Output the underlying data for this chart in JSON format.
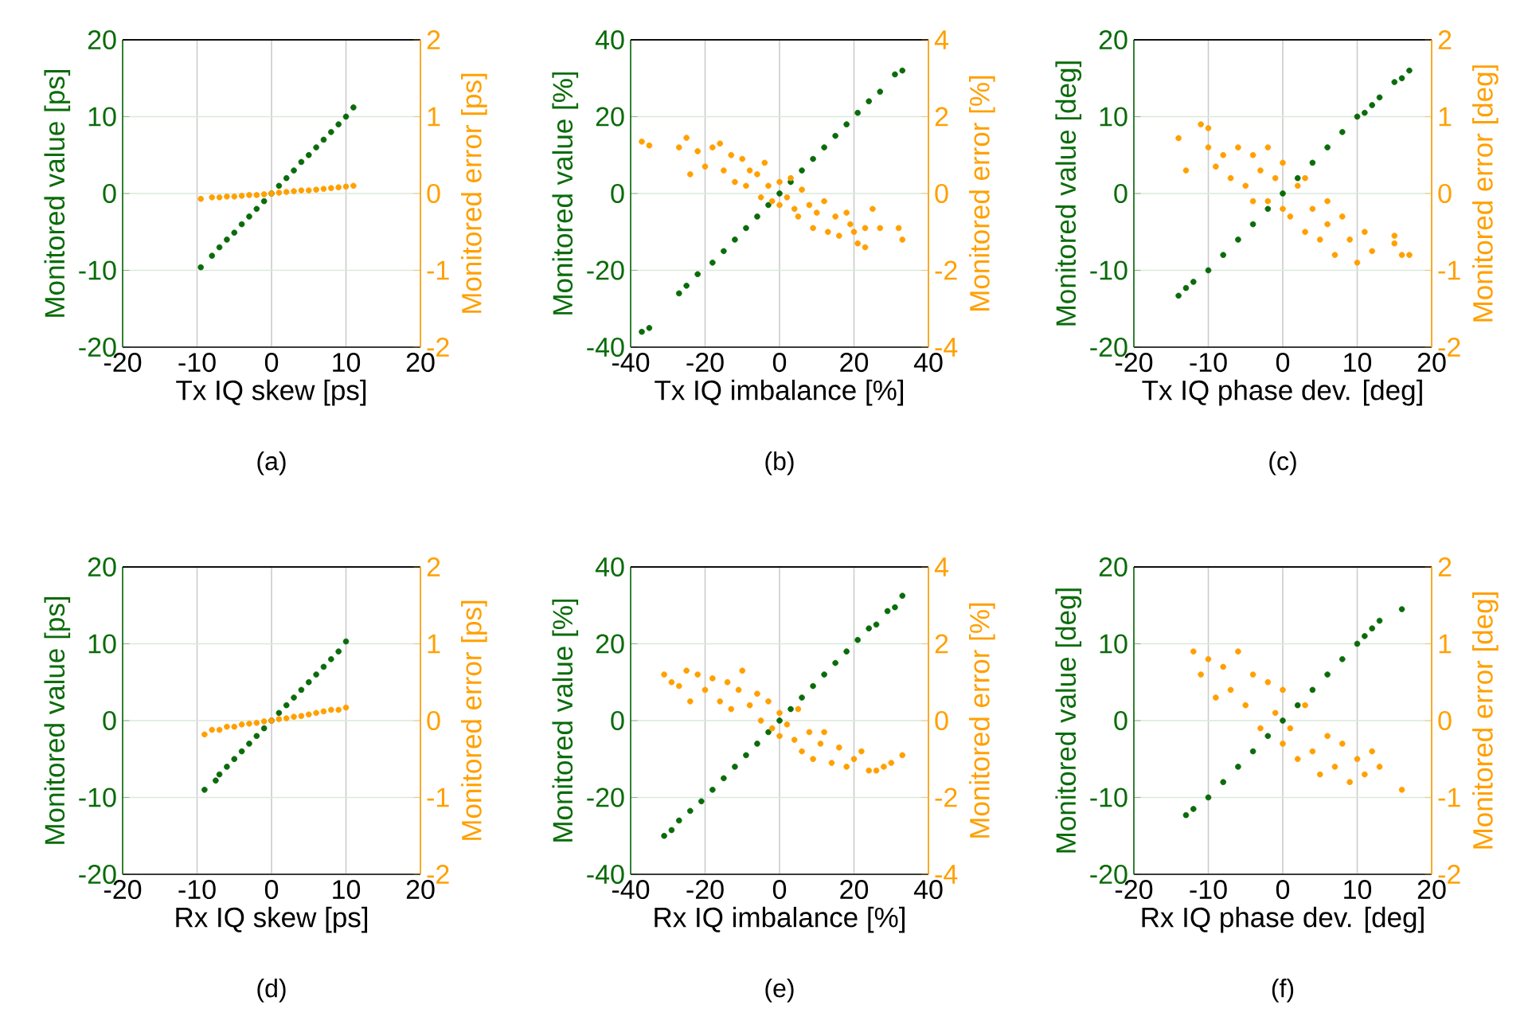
{
  "chart_data": [
    {
      "type": "scatter",
      "xlabel": "Tx IQ skew [ps]",
      "ylabel": "Monitored value [ps]",
      "y2label": "Monitored error [ps]",
      "annotations": [
        "(a)"
      ],
      "xlim": [
        -20,
        20
      ],
      "xticks": [
        -20,
        -10,
        0,
        10,
        20
      ],
      "ylim": [
        -20,
        20
      ],
      "yticks": [
        -20,
        -10,
        0,
        10,
        20
      ],
      "y2lim": [
        -2,
        2
      ],
      "y2ticks": [
        -2,
        -1,
        0,
        1,
        2
      ],
      "grid": true,
      "marker": "circle",
      "series": [
        {
          "color": "#0a6b0a",
          "x": [
            -9.5,
            -8,
            -7,
            -6,
            -5,
            -4,
            -3,
            -2,
            -1,
            0,
            1,
            2,
            3,
            4,
            5,
            6,
            7,
            8,
            9,
            10,
            11
          ],
          "values": [
            -9.6,
            -8.1,
            -7,
            -6,
            -5.1,
            -4,
            -3,
            -2,
            -1,
            0,
            1,
            2,
            3,
            4.1,
            5,
            6,
            7,
            8,
            9,
            10,
            11.2
          ]
        },
        {
          "color": "#ffa000",
          "axis": "y2",
          "x": [
            -9.5,
            -8,
            -7,
            -6,
            -5,
            -4,
            -3,
            -2,
            -1,
            0,
            1,
            2,
            3,
            4,
            5,
            6,
            7,
            8,
            9,
            10,
            11
          ],
          "values": [
            -0.07,
            -0.05,
            -0.05,
            -0.04,
            -0.04,
            -0.03,
            -0.02,
            -0.02,
            -0.01,
            0,
            0.01,
            0.02,
            0.03,
            0.04,
            0.04,
            0.05,
            0.06,
            0.07,
            0.08,
            0.09,
            0.1
          ]
        }
      ]
    },
    {
      "type": "scatter",
      "xlabel": "Tx IQ imbalance [%]",
      "ylabel": "Monitored value [%]",
      "y2label": "Monitored error [%]",
      "annotations": [
        "(b)"
      ],
      "xlim": [
        -40,
        40
      ],
      "xticks": [
        -40,
        -20,
        0,
        20,
        40
      ],
      "ylim": [
        -40,
        40
      ],
      "yticks": [
        -40,
        -20,
        0,
        20,
        40
      ],
      "y2lim": [
        -4,
        4
      ],
      "y2ticks": [
        -4,
        -2,
        0,
        2,
        4
      ],
      "grid": true,
      "marker": "circle",
      "series": [
        {
          "color": "#0a6b0a",
          "x": [
            -37,
            -35,
            -27,
            -25,
            -22,
            -18,
            -15,
            -12,
            -9,
            -6,
            -3,
            0,
            3,
            6,
            9,
            12,
            15,
            18,
            21,
            24,
            27,
            31,
            33
          ],
          "values": [
            -36,
            -35,
            -26,
            -24,
            -21,
            -18,
            -15,
            -12,
            -9,
            -6,
            -3,
            0,
            3,
            6,
            9,
            12,
            15,
            18,
            21,
            24,
            26.5,
            31,
            32
          ]
        },
        {
          "color": "#ffa000",
          "axis": "y2",
          "x": [
            -37,
            -35,
            -27,
            -25,
            -24,
            -22,
            -20,
            -18,
            -16,
            -15,
            -13,
            -12,
            -10,
            -9,
            -8,
            -6,
            -5,
            -4,
            -3,
            -2,
            0,
            0,
            2,
            3,
            4,
            5,
            6,
            8,
            9,
            10,
            12,
            13,
            15,
            16,
            18,
            19,
            20,
            21,
            23,
            23,
            25,
            27,
            32,
            33
          ],
          "values": [
            1.35,
            1.25,
            1.2,
            1.45,
            0.5,
            1.1,
            0.7,
            1.2,
            1.3,
            0.6,
            1.0,
            0.3,
            0.9,
            0.2,
            0.6,
            0.5,
            -0.1,
            0.8,
            0.2,
            -0.2,
            0.3,
            -0.3,
            -0.1,
            0.4,
            -0.4,
            -0.6,
            0.1,
            -0.3,
            -0.9,
            -0.5,
            -0.2,
            -1.0,
            -0.6,
            -1.1,
            -0.5,
            -0.8,
            -1.0,
            -1.3,
            -1.4,
            -0.9,
            -0.4,
            -0.9,
            -0.9,
            -1.2
          ]
        }
      ]
    },
    {
      "type": "scatter",
      "xlabel": "Tx IQ phase dev. [deg]",
      "ylabel": "Monitored value [deg]",
      "y2label": "Monitored error [deg]",
      "annotations": [
        "(c)"
      ],
      "xlim": [
        -20,
        20
      ],
      "xticks": [
        -20,
        -10,
        0,
        10,
        20
      ],
      "ylim": [
        -20,
        20
      ],
      "yticks": [
        -20,
        -10,
        0,
        10,
        20
      ],
      "y2lim": [
        -2,
        2
      ],
      "y2ticks": [
        -2,
        -1,
        0,
        1,
        2
      ],
      "grid": true,
      "marker": "circle",
      "series": [
        {
          "color": "#0a6b0a",
          "x": [
            -14,
            -13,
            -12,
            -10,
            -8,
            -6,
            -4,
            -2,
            0,
            2,
            4,
            6,
            8,
            10,
            11,
            12,
            13,
            15,
            16,
            17
          ],
          "values": [
            -13.3,
            -12.3,
            -11.5,
            -10,
            -8,
            -6,
            -4,
            -2,
            0,
            2,
            4,
            6,
            8,
            10,
            10.5,
            11.5,
            12.5,
            14.5,
            15,
            16
          ]
        },
        {
          "color": "#ffa000",
          "axis": "y2",
          "x": [
            -14,
            -13,
            -11,
            -10,
            -10,
            -9,
            -8,
            -7,
            -6,
            -5,
            -4,
            -4,
            -3,
            -2,
            -2,
            -1,
            0,
            0,
            1,
            2,
            3,
            3,
            4,
            5,
            6,
            6,
            7,
            8,
            9,
            10,
            11,
            12,
            15,
            15,
            16,
            17
          ],
          "values": [
            0.72,
            0.3,
            0.9,
            0.6,
            0.85,
            0.35,
            0.5,
            0.2,
            0.6,
            0.1,
            0.5,
            -0.1,
            0.3,
            0.6,
            -0.1,
            0.2,
            -0.2,
            0.4,
            -0.3,
            0.1,
            -0.5,
            0.2,
            -0.2,
            -0.6,
            -0.1,
            -0.4,
            -0.8,
            -0.3,
            -0.6,
            -0.9,
            -0.5,
            -0.75,
            -0.55,
            -0.65,
            -0.8,
            -0.8
          ]
        }
      ]
    },
    {
      "type": "scatter",
      "xlabel": "Rx IQ skew [ps]",
      "ylabel": "Monitored value [ps]",
      "y2label": "Monitored error [ps]",
      "annotations": [
        "(d)"
      ],
      "xlim": [
        -20,
        20
      ],
      "xticks": [
        -20,
        -10,
        0,
        10,
        20
      ],
      "ylim": [
        -20,
        20
      ],
      "yticks": [
        -20,
        -10,
        0,
        10,
        20
      ],
      "y2lim": [
        -2,
        2
      ],
      "y2ticks": [
        -2,
        -1,
        0,
        1,
        2
      ],
      "grid": true,
      "marker": "circle",
      "series": [
        {
          "color": "#0a6b0a",
          "x": [
            -9,
            -7.5,
            -7,
            -6,
            -5,
            -4,
            -3,
            -2,
            -1,
            0,
            1,
            2,
            3,
            4,
            5,
            6,
            7,
            8,
            9,
            10
          ],
          "values": [
            -9,
            -7.8,
            -7,
            -6,
            -5,
            -4,
            -3,
            -2,
            -1,
            0,
            1,
            2,
            3,
            4,
            5,
            6,
            7,
            8,
            9,
            10.3
          ]
        },
        {
          "color": "#ffa000",
          "axis": "y2",
          "x": [
            -9,
            -8,
            -7,
            -6,
            -5,
            -4,
            -3,
            -2,
            -1,
            0,
            1,
            2,
            3,
            4,
            5,
            6,
            7,
            8,
            9,
            10
          ],
          "values": [
            -0.18,
            -0.12,
            -0.12,
            -0.08,
            -0.08,
            -0.05,
            -0.04,
            -0.03,
            -0.01,
            0,
            0.02,
            0.03,
            0.05,
            0.06,
            0.08,
            0.1,
            0.12,
            0.14,
            0.14,
            0.17
          ]
        }
      ]
    },
    {
      "type": "scatter",
      "xlabel": "Rx IQ imbalance [%]",
      "ylabel": "Monitored value [%]",
      "y2label": "Monitored error [%]",
      "annotations": [
        "(e)"
      ],
      "xlim": [
        -40,
        40
      ],
      "xticks": [
        -40,
        -20,
        0,
        20,
        40
      ],
      "ylim": [
        -40,
        40
      ],
      "yticks": [
        -40,
        -20,
        0,
        20,
        40
      ],
      "y2lim": [
        -4,
        4
      ],
      "y2ticks": [
        -4,
        -2,
        0,
        2,
        4
      ],
      "grid": true,
      "marker": "circle",
      "series": [
        {
          "color": "#0a6b0a",
          "x": [
            -31,
            -29,
            -27,
            -24,
            -21,
            -18,
            -15,
            -12,
            -9,
            -6,
            -3,
            0,
            3,
            6,
            9,
            12,
            15,
            18,
            21,
            24,
            26,
            29,
            31,
            33
          ],
          "values": [
            -30,
            -28.5,
            -26,
            -23.5,
            -21,
            -18,
            -15,
            -12,
            -9,
            -6,
            -3,
            0,
            3,
            6,
            9,
            12,
            15,
            18,
            21,
            24,
            25,
            28.5,
            29.5,
            32.5
          ]
        },
        {
          "color": "#ffa000",
          "axis": "y2",
          "x": [
            -31,
            -29,
            -27,
            -25,
            -24,
            -22,
            -20,
            -18,
            -16,
            -14,
            -13,
            -11,
            -10,
            -8,
            -6,
            -5,
            -3,
            -2,
            0,
            0,
            2,
            4,
            5,
            6,
            8,
            9,
            11,
            12,
            14,
            16,
            18,
            20,
            22,
            24,
            26,
            28,
            30,
            33
          ],
          "values": [
            1.2,
            1.0,
            0.9,
            1.3,
            0.5,
            1.2,
            0.8,
            1.1,
            0.5,
            1.0,
            0.3,
            0.8,
            1.3,
            0.4,
            0.7,
            0.0,
            0.5,
            -0.2,
            0.2,
            -0.4,
            -0.1,
            -0.5,
            0.3,
            -0.8,
            -0.3,
            -1.0,
            -0.6,
            -0.3,
            -1.1,
            -0.7,
            -1.2,
            -1.0,
            -0.8,
            -1.3,
            -1.3,
            -1.2,
            -1.1,
            -0.9
          ]
        }
      ]
    },
    {
      "type": "scatter",
      "xlabel": "Rx IQ phase dev. [deg]",
      "ylabel": "Monitored value [deg]",
      "y2label": "Monitored error [deg]",
      "annotations": [
        "(f)"
      ],
      "xlim": [
        -20,
        20
      ],
      "xticks": [
        -20,
        -10,
        0,
        10,
        20
      ],
      "ylim": [
        -20,
        20
      ],
      "yticks": [
        -20,
        -10,
        0,
        10,
        20
      ],
      "y2lim": [
        -2,
        2
      ],
      "y2ticks": [
        -2,
        -1,
        0,
        1,
        2
      ],
      "grid": true,
      "marker": "circle",
      "series": [
        {
          "color": "#0a6b0a",
          "x": [
            -13,
            -12,
            -10,
            -8,
            -6,
            -4,
            -2,
            0,
            2,
            4,
            6,
            8,
            10,
            11,
            12,
            13,
            16
          ],
          "values": [
            -12.3,
            -11.5,
            -10,
            -8,
            -6,
            -4,
            -2,
            0,
            2,
            4,
            6,
            8,
            10,
            11,
            12,
            13,
            14.5
          ]
        },
        {
          "color": "#ffa000",
          "axis": "y2",
          "x": [
            -12,
            -11,
            -10,
            -9,
            -8,
            -7,
            -6,
            -5,
            -4,
            -3,
            -2,
            -1,
            0,
            0,
            1,
            2,
            3,
            4,
            5,
            6,
            7,
            8,
            9,
            10,
            11,
            12,
            13,
            16
          ],
          "values": [
            0.9,
            0.6,
            0.8,
            0.3,
            0.7,
            0.4,
            0.9,
            0.2,
            0.6,
            -0.1,
            0.5,
            0.1,
            -0.3,
            0.4,
            -0.1,
            -0.5,
            0.2,
            -0.4,
            -0.7,
            -0.2,
            -0.6,
            -0.3,
            -0.8,
            -0.5,
            -0.7,
            -0.4,
            -0.6,
            -0.9
          ]
        }
      ]
    }
  ]
}
